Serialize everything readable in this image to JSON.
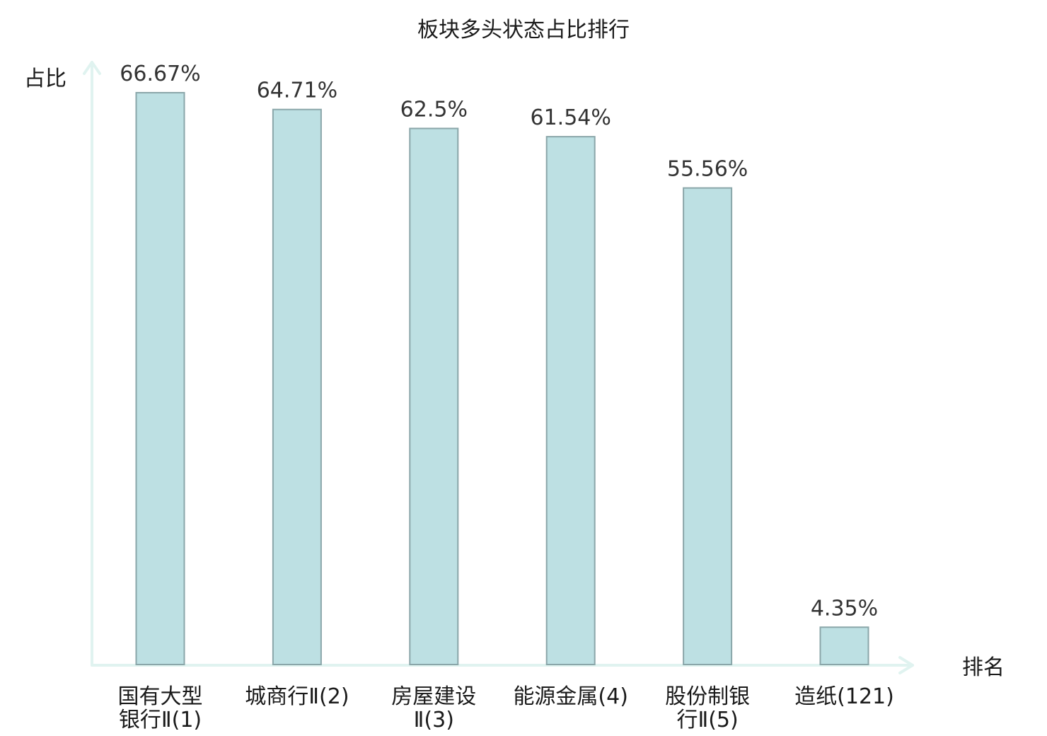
{
  "chart_data": {
    "type": "bar",
    "title": "板块多头状态占比排行",
    "ylabel": "占比",
    "xlabel": "排名",
    "unit": "%",
    "ylim": [
      0,
      70
    ],
    "grid": false,
    "legend": "none",
    "categories": [
      [
        "国有大型",
        "银行Ⅱ(1)"
      ],
      [
        "城商行Ⅱ(2)"
      ],
      [
        "房屋建设",
        "Ⅱ(3)"
      ],
      [
        "能源金属(4)"
      ],
      [
        "股份制银",
        "行Ⅱ(5)"
      ],
      [
        "造纸(121)"
      ]
    ],
    "values": [
      66.67,
      64.71,
      62.5,
      61.54,
      55.56,
      4.35
    ],
    "value_labels": [
      "66.67%",
      "64.71%",
      "62.5%",
      "61.54%",
      "55.56%",
      "4.35%"
    ],
    "highlight_index": 5,
    "colors": {
      "bar_fill": "#bde0e3",
      "bar_stroke": "#8aa6a9",
      "axis": "#e0f3f0",
      "highlight_text": "#e02020"
    }
  }
}
